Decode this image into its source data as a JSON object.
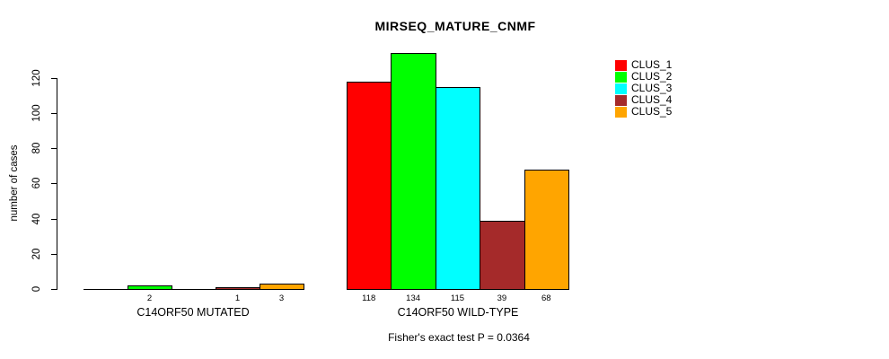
{
  "chart_data": {
    "type": "bar",
    "title": "MIRSEQ_MATURE_CNMF",
    "ylabel": "number of cases",
    "xlabel": "",
    "ylim": [
      0,
      120
    ],
    "yticks": [
      0,
      20,
      40,
      60,
      80,
      100,
      120
    ],
    "grid": false,
    "legend_position": "top-right",
    "legend_frame": false,
    "series": [
      {
        "name": "CLUS_1",
        "color": "#ff0000"
      },
      {
        "name": "CLUS_2",
        "color": "#00ff00"
      },
      {
        "name": "CLUS_3",
        "color": "#00ffff"
      },
      {
        "name": "CLUS_4",
        "color": "#a52a2a"
      },
      {
        "name": "CLUS_5",
        "color": "#ffa500"
      }
    ],
    "groups": [
      {
        "label": "C14ORF50 MUTATED",
        "values": [
          0,
          2,
          0,
          1,
          3
        ]
      },
      {
        "label": "C14ORF50 WILD-TYPE",
        "values": [
          118,
          134,
          115,
          39,
          68
        ]
      }
    ],
    "bar_value_labels": "counts shown under each bar; zero-value bars have no bar and no label",
    "annotation": "Fisher's exact test P = 0.0364"
  }
}
